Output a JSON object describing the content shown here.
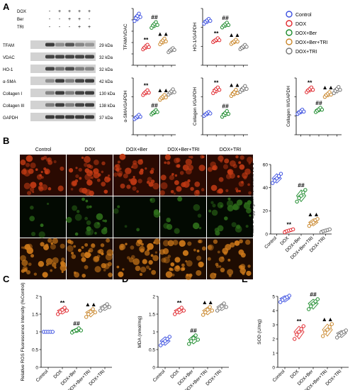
{
  "panel_letters": {
    "a": "A",
    "b": "B",
    "c": "C",
    "d": "D",
    "e": "E"
  },
  "colors": {
    "control": "#3b4fe0",
    "dox": "#e0262c",
    "dox_ber": "#1a8a2a",
    "dox_ber_tri": "#c9862a",
    "dox_tri": "#777777",
    "blot_bg": "#d2d2d2",
    "band": "#2b2b2b",
    "micro_red": "#c23a14",
    "micro_green": "#2e6e1a",
    "micro_merge": "#cf7a1a"
  },
  "legend": {
    "entries": [
      {
        "label": "Control",
        "color": "#3b4fe0"
      },
      {
        "label": "DOX",
        "color": "#e0262c"
      },
      {
        "label": "DOX+Ber",
        "color": "#1a8a2a"
      },
      {
        "label": "DOX+Ber+TRI",
        "color": "#c9862a"
      },
      {
        "label": "DOX+TRI",
        "color": "#777777"
      }
    ]
  },
  "western_blot": {
    "treatment_rows": [
      {
        "label": "DOX",
        "marks": [
          "-",
          "+",
          "+",
          "+",
          "+"
        ]
      },
      {
        "label": "Ber",
        "marks": [
          "-",
          "-",
          "+",
          "+",
          "-"
        ]
      },
      {
        "label": "TRI",
        "marks": [
          "-",
          "-",
          "-",
          "+",
          "+"
        ]
      }
    ],
    "proteins": [
      {
        "name": "TFAM",
        "kda": "29 kDa"
      },
      {
        "name": "VDAC",
        "kda": "32 kDa"
      },
      {
        "name": "HO-1",
        "kda": "32 kDa"
      },
      {
        "name": "α-SMA",
        "kda": "42 kDa"
      },
      {
        "name": "Collagen I",
        "kda": "130 kDa"
      },
      {
        "name": "Collagen III",
        "kda": "138 kDa"
      },
      {
        "name": "GAPDH",
        "kda": "37 kDa"
      }
    ]
  },
  "microscopy": {
    "column_labels": [
      "Control",
      "DOX",
      "DOX+Ber",
      "DOX+Ber+TRI",
      "DOX+TRI"
    ]
  },
  "chart_data": [
    {
      "id": "tfam",
      "type": "scatter",
      "ylabel": "TFAM/VDAC",
      "ylim": [
        0,
        1.0
      ],
      "categories": [
        "Control",
        "DOX",
        "DOX+Ber",
        "DOX+Ber+TRI",
        "DOX+TRI"
      ],
      "show_xlabels": false,
      "values": [
        [
          0.78,
          0.83,
          0.87,
          0.91,
          0.85
        ],
        [
          0.28,
          0.31,
          0.34,
          0.36,
          0.32
        ],
        [
          0.66,
          0.7,
          0.73,
          0.76,
          0.71
        ],
        [
          0.37,
          0.41,
          0.44,
          0.47,
          0.42
        ],
        [
          0.23,
          0.26,
          0.28,
          0.3,
          0.27
        ]
      ],
      "annotations": [
        "",
        "**",
        "##",
        "▲▲",
        ""
      ]
    },
    {
      "id": "ho1",
      "type": "scatter",
      "ylabel": "HO-1/GAPDH",
      "ylim": [
        0,
        1.2
      ],
      "categories": [
        "Control",
        "DOX",
        "DOX+Ber",
        "DOX+Ber+TRI",
        "DOX+TRI"
      ],
      "show_xlabels": false,
      "values": [
        [
          0.88,
          0.92,
          0.95,
          0.98,
          0.94
        ],
        [
          0.49,
          0.52,
          0.54,
          0.57,
          0.53
        ],
        [
          0.8,
          0.84,
          0.87,
          0.9,
          0.85
        ],
        [
          0.45,
          0.48,
          0.51,
          0.54,
          0.5
        ],
        [
          0.34,
          0.37,
          0.4,
          0.43,
          0.39
        ]
      ],
      "annotations": [
        "",
        "**",
        "##",
        "▲▲",
        ""
      ]
    },
    {
      "id": "sma",
      "type": "scatter",
      "ylabel": "α-SMA/GAPDH",
      "ylim": [
        0,
        1.2
      ],
      "categories": [
        "Control",
        "DOX",
        "DOX+Ber",
        "DOX+Ber+TRI",
        "DOX+TRI"
      ],
      "show_xlabels": false,
      "values": [
        [
          0.33,
          0.36,
          0.39,
          0.42,
          0.38
        ],
        [
          0.84,
          0.88,
          0.91,
          0.94,
          0.89
        ],
        [
          0.43,
          0.46,
          0.49,
          0.52,
          0.48
        ],
        [
          0.74,
          0.78,
          0.81,
          0.84,
          0.79
        ],
        [
          0.85,
          0.89,
          0.92,
          0.96,
          0.9
        ]
      ],
      "annotations": [
        "",
        "**",
        "##",
        "▲▲",
        ""
      ]
    },
    {
      "id": "col1",
      "type": "scatter",
      "ylabel": "Collagen I/GAPDH",
      "ylim": [
        0,
        1.2
      ],
      "categories": [
        "Control",
        "DOX",
        "DOX+Ber",
        "DOX+Ber+TRI",
        "DOX+TRI"
      ],
      "show_xlabels": false,
      "values": [
        [
          0.4,
          0.43,
          0.46,
          0.48,
          0.45
        ],
        [
          0.88,
          0.93,
          0.97,
          1.0,
          0.95
        ],
        [
          0.38,
          0.42,
          0.46,
          0.5,
          0.44
        ],
        [
          0.82,
          0.86,
          0.9,
          0.95,
          0.88
        ],
        [
          0.91,
          0.95,
          0.99,
          1.03,
          0.97
        ]
      ],
      "annotations": [
        "",
        "**",
        "##",
        "▲▲",
        ""
      ]
    },
    {
      "id": "col3",
      "type": "scatter",
      "ylabel": "Collagen III/GAPDH",
      "ylim": [
        0,
        1.2
      ],
      "categories": [
        "Control",
        "DOX",
        "DOX+Ber",
        "DOX+Ber+TRI",
        "DOX+TRI"
      ],
      "show_xlabels": false,
      "values": [
        [
          0.44,
          0.47,
          0.5,
          0.53,
          0.49
        ],
        [
          0.9,
          0.94,
          0.97,
          1.0,
          0.95
        ],
        [
          0.48,
          0.51,
          0.54,
          0.57,
          0.53
        ],
        [
          0.8,
          0.84,
          0.87,
          0.9,
          0.85
        ],
        [
          0.88,
          0.93,
          0.97,
          1.01,
          0.95
        ]
      ],
      "annotations": [
        "",
        "**",
        "##",
        "▲▲",
        ""
      ]
    },
    {
      "id": "jc1",
      "type": "scatter",
      "ylabel": "Ratio of aggregate/monomeric JC-1",
      "ylim": [
        0,
        60
      ],
      "ticks": [
        0,
        20,
        40,
        60
      ],
      "categories": [
        "Control",
        "DOX",
        "DOX+Ber",
        "DOX+Ber+TRI",
        "DOX+TRI"
      ],
      "show_xlabels": true,
      "values": [
        [
          44,
          46,
          48,
          50,
          52
        ],
        [
          1.5,
          2.5,
          3.0,
          3.5,
          4.0
        ],
        [
          28,
          31,
          33,
          36,
          38
        ],
        [
          7,
          9,
          10,
          12,
          13
        ],
        [
          1.5,
          2.5,
          3.0,
          3.5,
          4.0
        ]
      ],
      "annotations": [
        "",
        "**",
        "##",
        "▲▲",
        ""
      ]
    },
    {
      "id": "ros",
      "type": "scatter",
      "ylabel": "Relative ROS Fluorescence Intensity (%Control)",
      "ylim": [
        0,
        2.0
      ],
      "ticks": [
        0,
        0.5,
        1.0,
        1.5,
        2.0
      ],
      "categories": [
        "Control",
        "DOX",
        "DOX+Ber",
        "DOX+Ber+TRI",
        "DOX+TRI"
      ],
      "show_xlabels": true,
      "values": [
        [
          1.0,
          1.0,
          1.0,
          1.0,
          1.0
        ],
        [
          1.5,
          1.56,
          1.62,
          1.68,
          1.6
        ],
        [
          0.98,
          1.02,
          1.05,
          1.1,
          1.04
        ],
        [
          1.42,
          1.5,
          1.56,
          1.64,
          1.55
        ],
        [
          1.6,
          1.66,
          1.72,
          1.78,
          1.7
        ]
      ],
      "annotations": [
        "",
        "**",
        "##",
        "▲▲",
        ""
      ]
    },
    {
      "id": "mda",
      "type": "scatter",
      "ylabel": "MDA (nmol/mg)",
      "ylim": [
        0,
        2.0
      ],
      "ticks": [
        0,
        0.5,
        1.0,
        1.5,
        2.0
      ],
      "categories": [
        "Control",
        "DOX",
        "DOX+Ber",
        "DOX+Ber+TRI",
        "DOX+TRI"
      ],
      "show_xlabels": true,
      "values": [
        [
          0.62,
          0.68,
          0.74,
          0.8,
          0.86
        ],
        [
          1.5,
          1.56,
          1.62,
          1.68,
          1.6
        ],
        [
          0.66,
          0.74,
          0.82,
          0.9,
          0.78
        ],
        [
          1.48,
          1.55,
          1.62,
          1.7,
          1.6
        ],
        [
          1.6,
          1.66,
          1.72,
          1.8,
          1.7
        ]
      ],
      "annotations": [
        "",
        "**",
        "##",
        "▲▲",
        ""
      ]
    },
    {
      "id": "sod",
      "type": "scatter",
      "ylabel": "SOD (U/mg)",
      "ylim": [
        0,
        5
      ],
      "ticks": [
        0,
        1,
        2,
        3,
        4,
        5
      ],
      "categories": [
        "Control",
        "DOX",
        "DOX+Ber",
        "DOX+Ber+TRI",
        "DOX+TRI"
      ],
      "show_xlabels": true,
      "values": [
        [
          4.6,
          4.75,
          4.85,
          4.95,
          5.05
        ],
        [
          2.0,
          2.3,
          2.5,
          2.7,
          2.9
        ],
        [
          4.1,
          4.3,
          4.5,
          4.65,
          4.8
        ],
        [
          2.2,
          2.45,
          2.65,
          2.85,
          3.05
        ],
        [
          2.1,
          2.25,
          2.4,
          2.5,
          2.6
        ]
      ],
      "annotations": [
        "",
        "**",
        "##",
        "▲▲",
        ""
      ]
    }
  ]
}
